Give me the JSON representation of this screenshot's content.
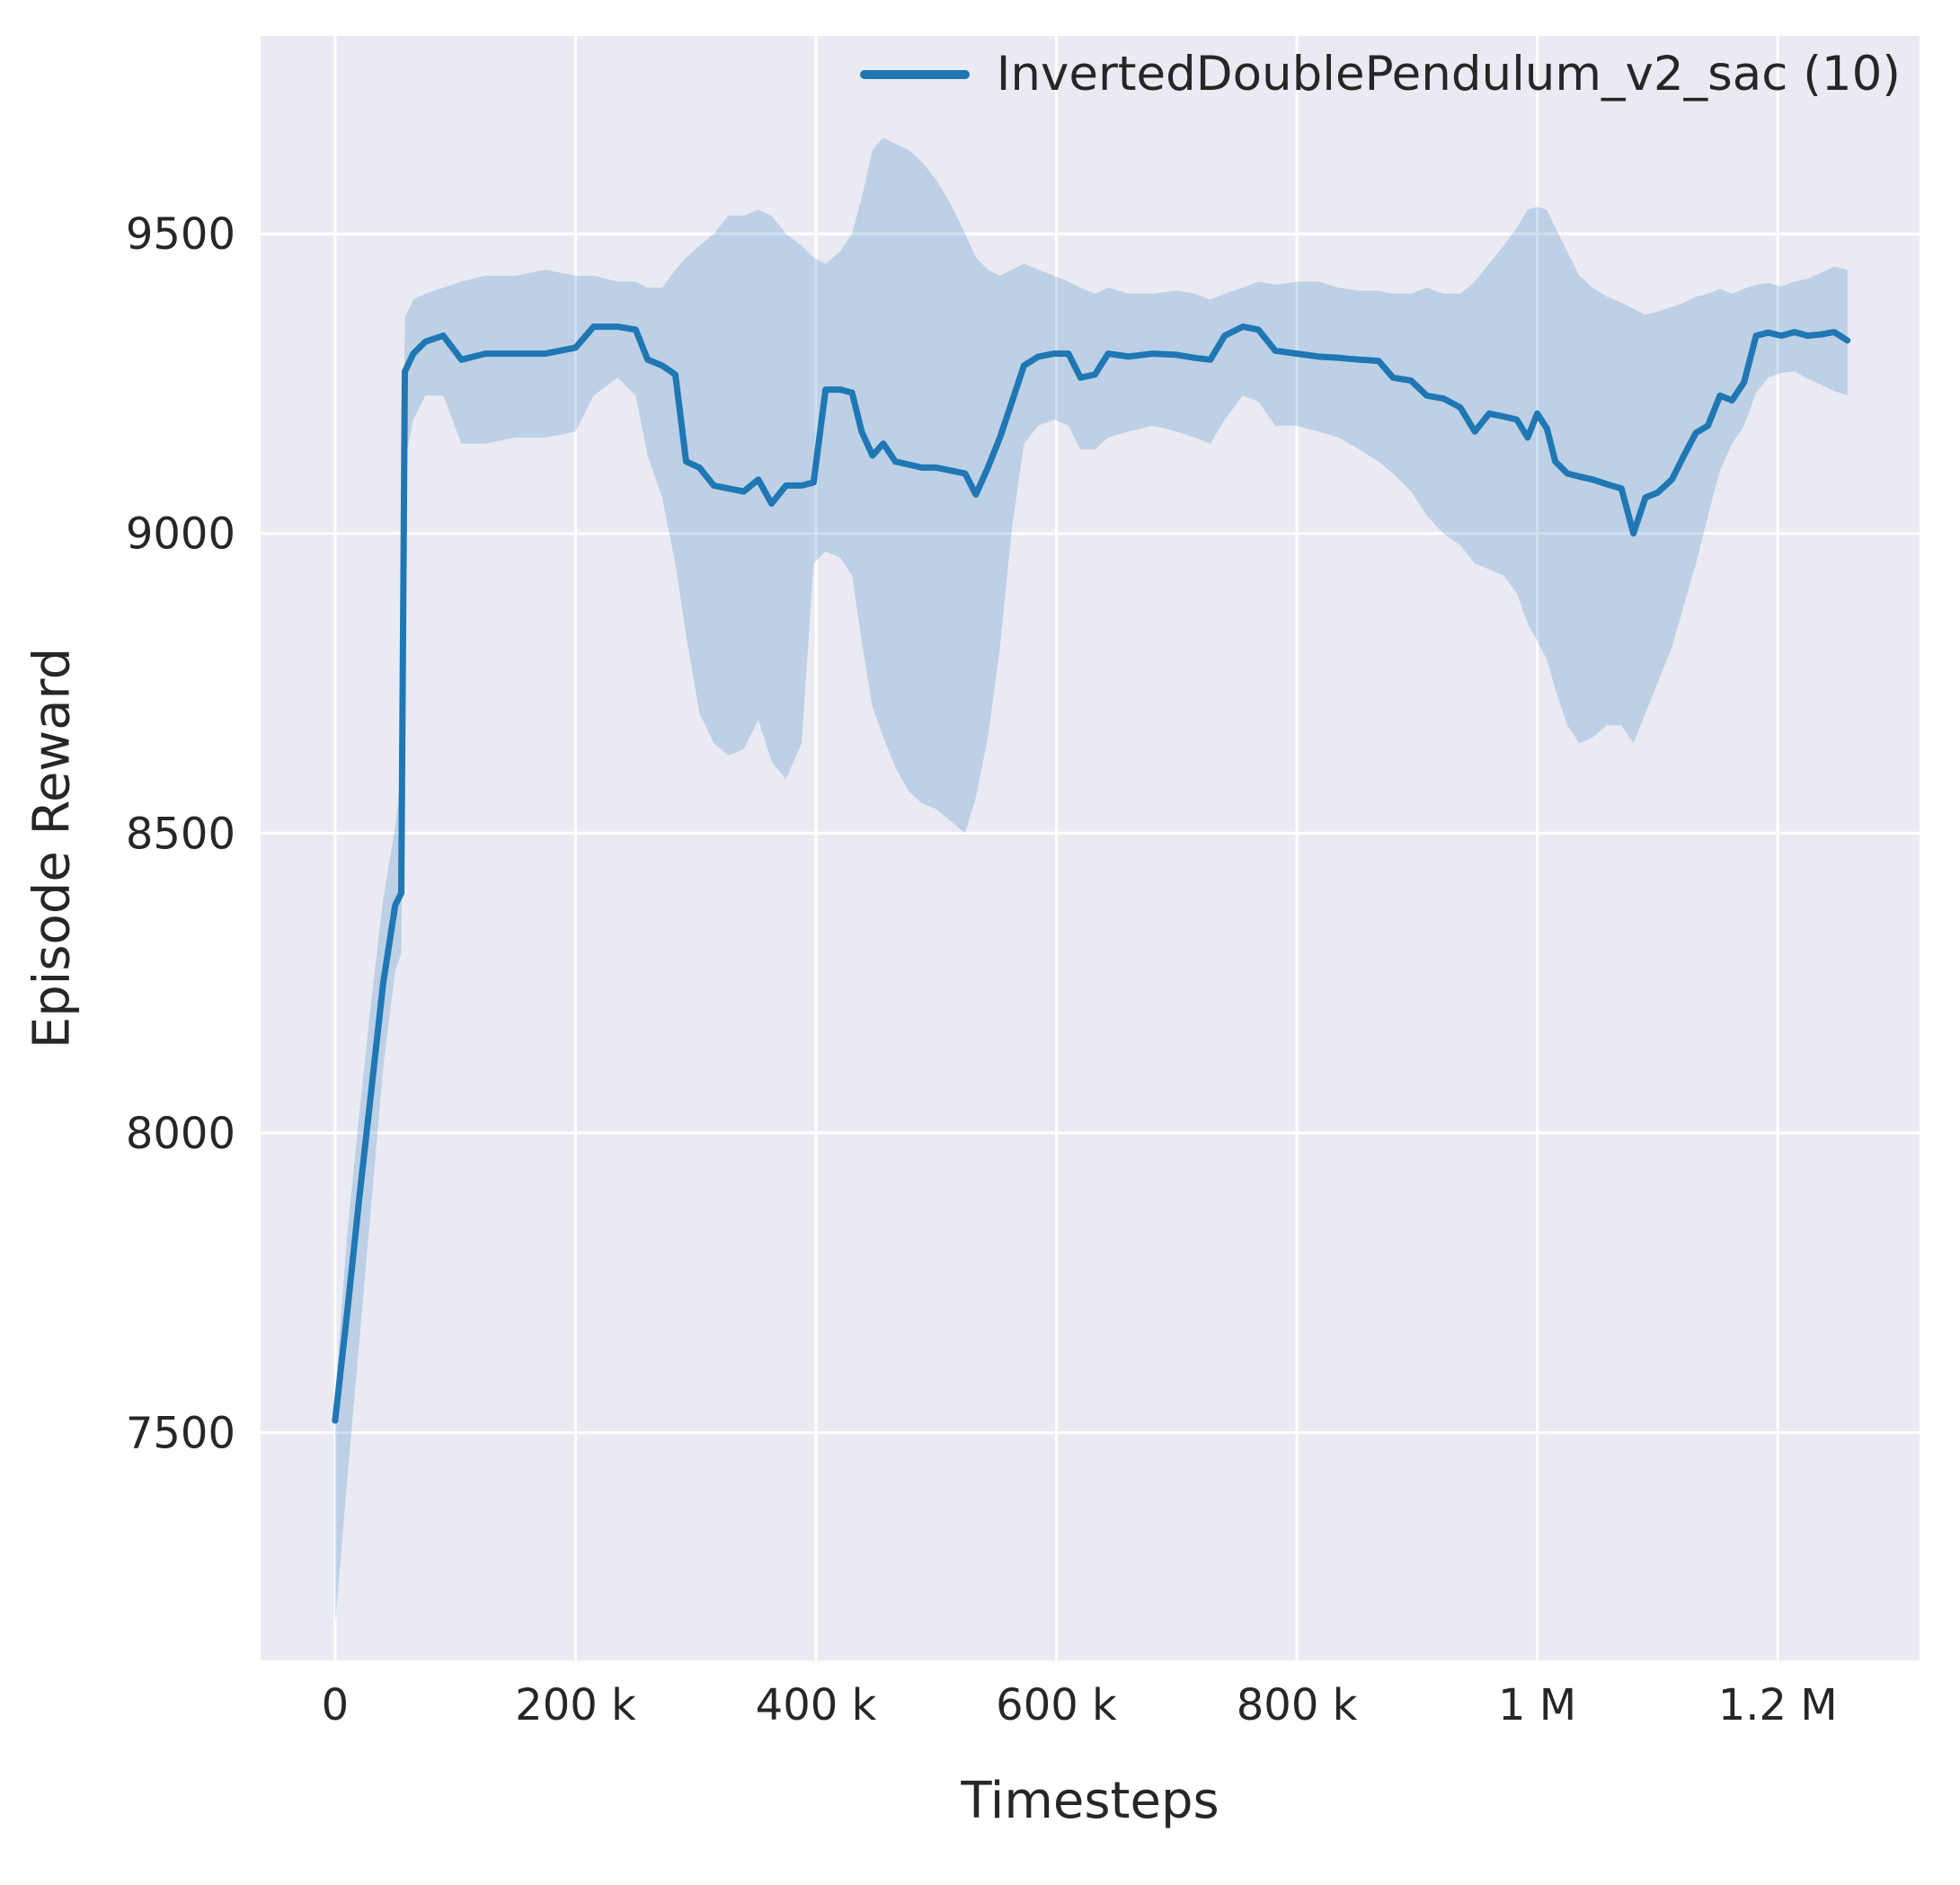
{
  "chart_data": {
    "type": "line",
    "title": "",
    "xlabel": "Timesteps",
    "ylabel": "Episode Reward",
    "legend_position": "upper right",
    "grid": true,
    "xlim": [
      -62000,
      1318000
    ],
    "ylim": [
      7120,
      9830
    ],
    "xticks": [
      {
        "value": 0,
        "label": "0"
      },
      {
        "value": 200000,
        "label": "200 k"
      },
      {
        "value": 400000,
        "label": "400 k"
      },
      {
        "value": 600000,
        "label": "600 k"
      },
      {
        "value": 800000,
        "label": "800 k"
      },
      {
        "value": 1000000,
        "label": "1 M"
      },
      {
        "value": 1200000,
        "label": "1.2 M"
      }
    ],
    "yticks": [
      {
        "value": 7500,
        "label": "7500"
      },
      {
        "value": 8000,
        "label": "8000"
      },
      {
        "value": 8500,
        "label": "8500"
      },
      {
        "value": 9000,
        "label": "9000"
      },
      {
        "value": 9500,
        "label": "9500"
      }
    ],
    "colors": {
      "plot_bg": "#eaeaf2",
      "grid": "#ffffff",
      "text": "#262626",
      "line": "#1f77b4",
      "band": "#1f77b4"
    },
    "series": [
      {
        "name": "InvertedDoublePendulum_v2_sac (10)",
        "color": "#1f77b4",
        "band_opacity": 0.22,
        "points_format": [
          "x",
          "mean",
          "band_lower",
          "band_upper"
        ],
        "points": [
          [
            0,
            7520,
            7180,
            7560
          ],
          [
            10000,
            7700,
            7420,
            7830
          ],
          [
            20000,
            7890,
            7650,
            8030
          ],
          [
            30000,
            8070,
            7880,
            8220
          ],
          [
            40000,
            8250,
            8110,
            8390
          ],
          [
            50000,
            8380,
            8270,
            8510
          ],
          [
            55000,
            8400,
            8300,
            8600
          ],
          [
            58000,
            9270,
            9120,
            9360
          ],
          [
            65000,
            9300,
            9190,
            9390
          ],
          [
            75000,
            9320,
            9230,
            9400
          ],
          [
            90000,
            9330,
            9230,
            9410
          ],
          [
            105000,
            9290,
            9150,
            9420
          ],
          [
            125000,
            9300,
            9150,
            9430
          ],
          [
            150000,
            9300,
            9160,
            9430
          ],
          [
            175000,
            9300,
            9160,
            9440
          ],
          [
            200000,
            9310,
            9170,
            9430
          ],
          [
            215000,
            9345,
            9230,
            9430
          ],
          [
            235000,
            9345,
            9260,
            9420
          ],
          [
            250000,
            9340,
            9230,
            9420
          ],
          [
            260000,
            9290,
            9130,
            9410
          ],
          [
            272000,
            9280,
            9060,
            9410
          ],
          [
            283000,
            9265,
            8950,
            9440
          ],
          [
            292000,
            9120,
            8830,
            9460
          ],
          [
            303000,
            9110,
            8700,
            9480
          ],
          [
            315000,
            9080,
            8650,
            9500
          ],
          [
            327000,
            9075,
            8630,
            9530
          ],
          [
            340000,
            9070,
            8640,
            9530
          ],
          [
            352000,
            9090,
            8690,
            9540
          ],
          [
            363000,
            9050,
            8620,
            9530
          ],
          [
            375000,
            9080,
            8590,
            9500
          ],
          [
            388000,
            9080,
            8650,
            9480
          ],
          [
            398000,
            9085,
            8950,
            9460
          ],
          [
            408000,
            9240,
            8970,
            9450
          ],
          [
            420000,
            9240,
            8960,
            9470
          ],
          [
            430000,
            9235,
            8930,
            9500
          ],
          [
            438000,
            9170,
            8820,
            9560
          ],
          [
            447000,
            9130,
            8710,
            9640
          ],
          [
            456000,
            9150,
            8660,
            9660
          ],
          [
            466000,
            9120,
            8610,
            9650
          ],
          [
            477000,
            9115,
            8570,
            9640
          ],
          [
            488000,
            9110,
            8550,
            9620
          ],
          [
            500000,
            9110,
            8540,
            9590
          ],
          [
            512000,
            9105,
            8520,
            9550
          ],
          [
            524000,
            9100,
            8500,
            9500
          ],
          [
            533000,
            9065,
            8560,
            9460
          ],
          [
            543000,
            9110,
            8660,
            9440
          ],
          [
            553000,
            9160,
            8810,
            9430
          ],
          [
            563000,
            9220,
            9010,
            9440
          ],
          [
            573000,
            9280,
            9150,
            9450
          ],
          [
            585000,
            9295,
            9180,
            9440
          ],
          [
            598000,
            9300,
            9190,
            9430
          ],
          [
            610000,
            9300,
            9180,
            9420
          ],
          [
            620000,
            9260,
            9140,
            9410
          ],
          [
            632000,
            9265,
            9140,
            9400
          ],
          [
            643000,
            9300,
            9160,
            9410
          ],
          [
            660000,
            9295,
            9170,
            9400
          ],
          [
            680000,
            9300,
            9180,
            9400
          ],
          [
            700000,
            9298,
            9170,
            9405
          ],
          [
            715000,
            9293,
            9160,
            9400
          ],
          [
            728000,
            9290,
            9150,
            9390
          ],
          [
            740000,
            9330,
            9190,
            9400
          ],
          [
            755000,
            9345,
            9230,
            9410
          ],
          [
            768000,
            9340,
            9220,
            9420
          ],
          [
            782000,
            9305,
            9180,
            9415
          ],
          [
            800000,
            9300,
            9180,
            9420
          ],
          [
            818000,
            9295,
            9170,
            9420
          ],
          [
            835000,
            9293,
            9160,
            9410
          ],
          [
            852000,
            9290,
            9140,
            9405
          ],
          [
            868000,
            9288,
            9120,
            9405
          ],
          [
            880000,
            9260,
            9100,
            9400
          ],
          [
            895000,
            9255,
            9070,
            9400
          ],
          [
            908000,
            9230,
            9030,
            9410
          ],
          [
            922000,
            9225,
            9000,
            9400
          ],
          [
            936000,
            9210,
            8980,
            9400
          ],
          [
            948000,
            9170,
            8950,
            9420
          ],
          [
            960000,
            9200,
            8940,
            9450
          ],
          [
            972000,
            9195,
            8930,
            9480
          ],
          [
            983000,
            9190,
            8900,
            9510
          ],
          [
            992000,
            9160,
            8850,
            9540
          ],
          [
            1000000,
            9200,
            8820,
            9545
          ],
          [
            1008000,
            9175,
            8790,
            9540
          ],
          [
            1015000,
            9120,
            8740,
            9510
          ],
          [
            1025000,
            9100,
            8680,
            9470
          ],
          [
            1035000,
            9095,
            8650,
            9430
          ],
          [
            1046000,
            9090,
            8660,
            9410
          ],
          [
            1058000,
            9082,
            8680,
            9395
          ],
          [
            1070000,
            9075,
            8680,
            9385
          ],
          [
            1080000,
            9000,
            8650,
            9375
          ],
          [
            1090000,
            9060,
            8700,
            9365
          ],
          [
            1100000,
            9068,
            8750,
            9370
          ],
          [
            1112000,
            9090,
            8810,
            9378
          ],
          [
            1122000,
            9130,
            8880,
            9385
          ],
          [
            1132000,
            9168,
            8950,
            9395
          ],
          [
            1142000,
            9180,
            9030,
            9400
          ],
          [
            1152000,
            9230,
            9105,
            9408
          ],
          [
            1162000,
            9222,
            9150,
            9400
          ],
          [
            1172000,
            9252,
            9180,
            9408
          ],
          [
            1182000,
            9330,
            9235,
            9415
          ],
          [
            1192000,
            9335,
            9260,
            9418
          ],
          [
            1203000,
            9330,
            9268,
            9412
          ],
          [
            1214000,
            9336,
            9270,
            9420
          ],
          [
            1225000,
            9330,
            9258,
            9425
          ],
          [
            1236000,
            9332,
            9248,
            9435
          ],
          [
            1247000,
            9336,
            9238,
            9445
          ],
          [
            1258000,
            9322,
            9230,
            9440
          ]
        ]
      }
    ]
  }
}
